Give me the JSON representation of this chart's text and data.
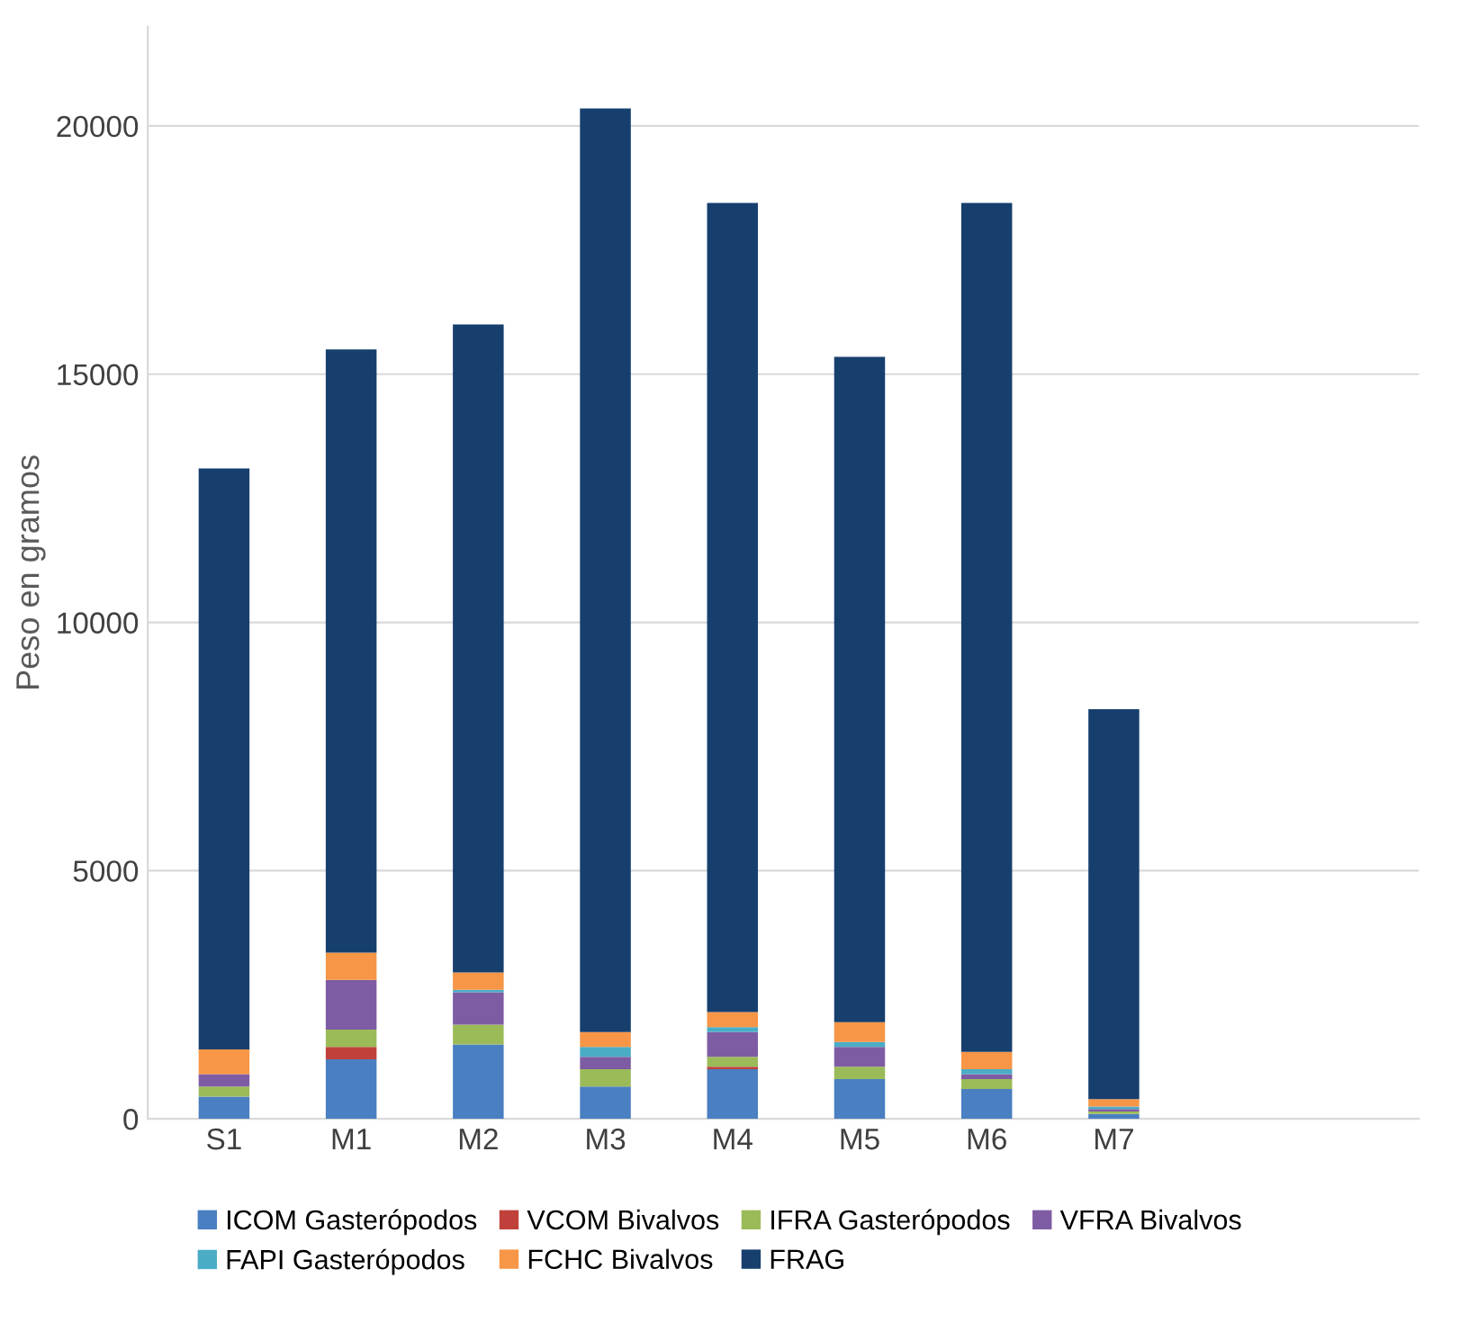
{
  "chart_data": {
    "type": "bar",
    "stacked": true,
    "ylabel": "Peso en gramos",
    "categories": [
      "S1",
      "M1",
      "M2",
      "M3",
      "M4",
      "M5",
      "M6",
      "M7"
    ],
    "series": [
      {
        "name": "ICOM Gasterópodos",
        "color": "#4a7fc1",
        "values": [
          450,
          1200,
          1500,
          650,
          1000,
          800,
          600,
          100
        ]
      },
      {
        "name": "VCOM Bivalvos",
        "color": "#c0413b",
        "values": [
          0,
          250,
          0,
          0,
          50,
          0,
          0,
          0
        ]
      },
      {
        "name": "IFRA Gasterópodos",
        "color": "#9bbb59",
        "values": [
          200,
          350,
          400,
          350,
          200,
          250,
          200,
          50
        ]
      },
      {
        "name": "VFRA Bivalvos",
        "color": "#7e5ca3",
        "values": [
          250,
          1000,
          650,
          250,
          500,
          400,
          100,
          50
        ]
      },
      {
        "name": "FAPI Gasterópodos",
        "color": "#4bacc6",
        "values": [
          0,
          0,
          50,
          200,
          100,
          100,
          100,
          50
        ]
      },
      {
        "name": "FCHC Bivalvos",
        "color": "#f79646",
        "values": [
          500,
          550,
          350,
          300,
          300,
          400,
          350,
          150
        ]
      },
      {
        "name": "FRAG",
        "color": "#173f6e",
        "values": [
          11700,
          12150,
          13050,
          18600,
          16300,
          13400,
          17100,
          7850
        ]
      }
    ],
    "ylim": [
      0,
      22000
    ],
    "yticks": [
      0,
      5000,
      10000,
      15000,
      20000
    ],
    "grid": "y",
    "legend": "bottom"
  }
}
